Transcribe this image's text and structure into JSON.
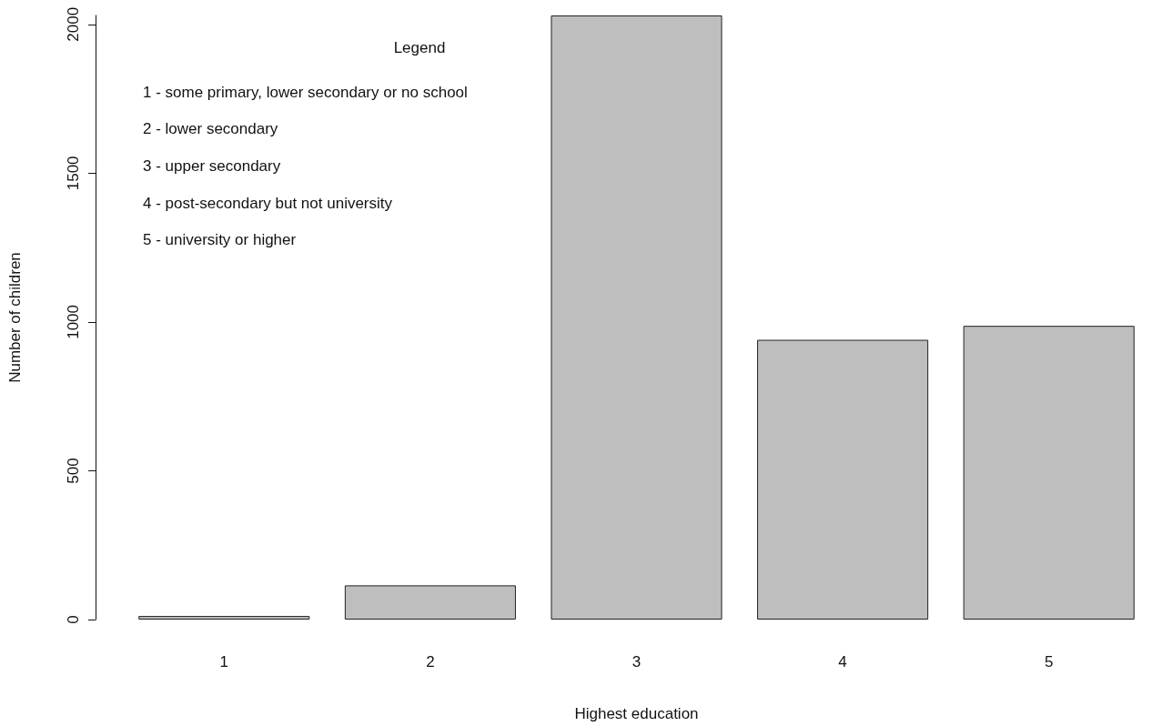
{
  "chart_data": {
    "type": "bar",
    "xlabel": "Highest education",
    "ylabel": "Number of children",
    "categories": [
      "1",
      "2",
      "3",
      "4",
      "5"
    ],
    "values": [
      12,
      115,
      2030,
      940,
      987
    ],
    "color": "#bebebe",
    "ylim": [
      0,
      2030
    ],
    "yticks": [
      0,
      500,
      1000,
      1500,
      2000
    ],
    "grid": false,
    "annotations": [
      "Legend",
      "1 - some primary, lower secondary or no school",
      "2 - lower secondary",
      "3 - upper secondary",
      "4 - post-secondary but not university",
      "5 - university or higher"
    ]
  }
}
